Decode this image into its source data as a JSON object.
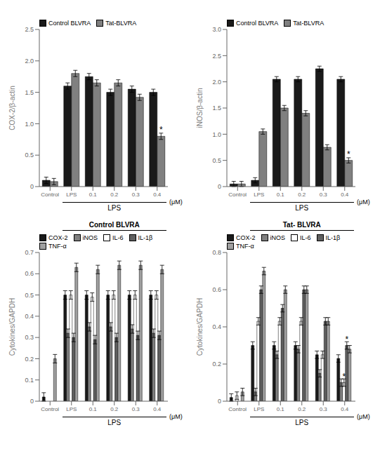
{
  "chart_data": [
    {
      "type": "bar",
      "y_label": "COX-2/β-actin",
      "grid": false,
      "legend": "upper left",
      "categories": [
        "Control",
        "LPS",
        "0.1",
        "0.2",
        "0.3",
        "0.4"
      ],
      "series": [
        {
          "name": "Control BLVRA",
          "color": "#1a1a1a",
          "values": [
            0.1,
            1.6,
            1.75,
            1.5,
            1.55,
            1.5
          ],
          "errors": [
            0.05,
            0.05,
            0.05,
            0.05,
            0.05,
            0.05
          ]
        },
        {
          "name": "Tat-BLVRA",
          "color": "#808080",
          "values": [
            0.08,
            1.8,
            1.65,
            1.65,
            1.42,
            0.8
          ],
          "errors": [
            0.05,
            0.05,
            0.05,
            0.05,
            0.05,
            0.05
          ]
        }
      ],
      "ylim": [
        0,
        2.5
      ],
      "yticks": [
        0,
        0.5,
        {
          "value": 1,
          "label": "1.0"
        },
        1.5,
        {
          "value": 2,
          "label": "2.0"
        },
        2.5
      ],
      "annotations": [
        {
          "text": "*",
          "series": "Tat-BLVRA",
          "category": "0.4"
        },
        {
          "text": "LPS",
          "from": "LPS",
          "to": "0.4"
        },
        {
          "text": "(μM)",
          "after": "0.4"
        }
      ]
    },
    {
      "type": "bar",
      "y_label": "iNOS/β-actin",
      "grid": false,
      "legend": "upper left",
      "categories": [
        "Control",
        "LPS",
        "0.1",
        "0.2",
        "0.3",
        "0.4"
      ],
      "series": [
        {
          "name": "Control BLVRA",
          "color": "#1a1a1a",
          "values": [
            0.05,
            0.12,
            2.05,
            2.05,
            2.25,
            2.05
          ],
          "errors": [
            0.05,
            0.05,
            0.05,
            0.05,
            0.05,
            0.05
          ]
        },
        {
          "name": "Tat-BLVRA",
          "color": "#808080",
          "values": [
            0.05,
            1.05,
            1.5,
            1.4,
            0.75,
            0.5
          ],
          "errors": [
            0.05,
            0.05,
            0.05,
            0.05,
            0.05,
            0.05
          ]
        }
      ],
      "ylim": [
        0,
        3
      ],
      "yticks": [
        0,
        0.5,
        {
          "value": 1,
          "label": "1.0"
        },
        1.5,
        {
          "value": 2,
          "label": "2.0"
        },
        2.5,
        {
          "value": 3,
          "label": "3.0"
        }
      ],
      "annotations": [
        {
          "text": "*",
          "series": "Tat-BLVRA",
          "category": "0.4"
        },
        {
          "text": "LPS",
          "from": "LPS",
          "to": "0.4"
        },
        {
          "text": "(μM)",
          "after": "0.4"
        }
      ]
    },
    {
      "type": "bar",
      "title": "Control BLVRA",
      "y_label": "Cytokines/GAPDH",
      "grid": false,
      "legend": "upper left",
      "categories": [
        "Control",
        "LPS",
        "0.1",
        "0.2",
        "0.3",
        "0.4"
      ],
      "series": [
        {
          "name": "COX-2",
          "color": "#1a1a1a",
          "values": [
            0.02,
            0.5,
            0.5,
            0.5,
            0.5,
            0.5
          ],
          "errors": [
            0.02,
            0.02,
            0.02,
            0.02,
            0.02,
            0.02
          ]
        },
        {
          "name": "iNOS",
          "color": "#808080",
          "values": [
            0.0,
            0.32,
            0.35,
            0.35,
            0.34,
            0.32
          ],
          "errors": [
            0.02,
            0.02,
            0.02,
            0.02,
            0.02,
            0.02
          ]
        },
        {
          "name": "IL-6",
          "color": "#ffffff",
          "values": [
            0.0,
            0.5,
            0.49,
            0.5,
            0.5,
            0.5
          ],
          "errors": [
            0.02,
            0.02,
            0.02,
            0.02,
            0.02,
            0.02
          ]
        },
        {
          "name": "IL-1β",
          "color": "#606060",
          "values": [
            0.0,
            0.3,
            0.29,
            0.3,
            0.31,
            0.31
          ],
          "errors": [
            0.02,
            0.02,
            0.02,
            0.02,
            0.02,
            0.02
          ]
        },
        {
          "name": "TNF-α",
          "color": "#a0a0a0",
          "values": [
            0.2,
            0.63,
            0.62,
            0.64,
            0.64,
            0.62
          ],
          "errors": [
            0.02,
            0.02,
            0.02,
            0.02,
            0.02,
            0.02
          ]
        }
      ],
      "ylim": [
        0,
        0.7
      ],
      "yticks": [
        0,
        0.1,
        0.2,
        0.3,
        0.4,
        0.5,
        0.6,
        0.7
      ],
      "annotations": [
        {
          "text": "LPS",
          "from": "LPS",
          "to": "0.4"
        },
        {
          "text": "(μM)",
          "after": "0.4"
        }
      ]
    },
    {
      "type": "bar",
      "title": "Tat- BLVRA",
      "y_label": "Cytokines/GAPDH",
      "grid": false,
      "legend": "upper left",
      "categories": [
        "Control",
        "LPS",
        "0.1",
        "0.2",
        "0.3",
        "0.4"
      ],
      "series": [
        {
          "name": "COX-2",
          "color": "#1a1a1a",
          "values": [
            0.02,
            0.3,
            0.3,
            0.3,
            0.25,
            0.23
          ],
          "errors": [
            0.02,
            0.02,
            0.02,
            0.02,
            0.02,
            0.02
          ]
        },
        {
          "name": "iNOS",
          "color": "#808080",
          "values": [
            0.0,
            0.05,
            0.25,
            0.28,
            0.15,
            0.1
          ],
          "errors": [
            0.02,
            0.02,
            0.02,
            0.02,
            0.02,
            0.02
          ]
        },
        {
          "name": "IL-6",
          "color": "#ffffff",
          "values": [
            0.03,
            0.43,
            0.43,
            0.43,
            0.25,
            0.1
          ],
          "errors": [
            0.02,
            0.02,
            0.02,
            0.02,
            0.02,
            0.02
          ]
        },
        {
          "name": "IL-1β",
          "color": "#606060",
          "values": [
            0.0,
            0.6,
            0.5,
            0.6,
            0.43,
            0.3
          ],
          "errors": [
            0.02,
            0.02,
            0.02,
            0.02,
            0.02,
            0.02
          ]
        },
        {
          "name": "TNF-α",
          "color": "#a0a0a0",
          "values": [
            0.05,
            0.7,
            0.6,
            0.6,
            0.43,
            0.28
          ],
          "errors": [
            0.02,
            0.02,
            0.02,
            0.02,
            0.02,
            0.02
          ]
        }
      ],
      "ylim": [
        0,
        0.8
      ],
      "yticks": [
        0,
        0.2,
        0.4,
        0.6,
        0.8
      ],
      "annotations": [
        {
          "text": "*",
          "series": "IL-6",
          "category": "0.4"
        },
        {
          "text": "*",
          "series": "IL-1β",
          "category": "0.4"
        },
        {
          "text": "LPS",
          "from": "LPS",
          "to": "0.4"
        },
        {
          "text": "(μM)",
          "after": "0.4"
        }
      ]
    }
  ]
}
